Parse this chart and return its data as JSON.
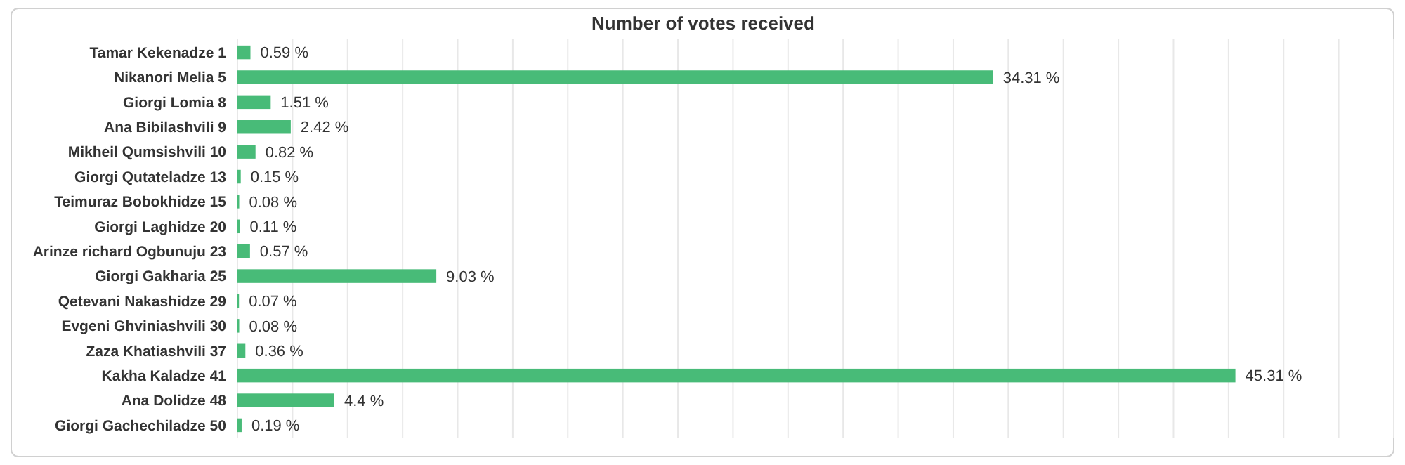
{
  "chart_data": {
    "type": "bar",
    "orientation": "horizontal",
    "title": "Number of votes received",
    "categories": [
      "Tamar Kekenadze 1",
      "Nikanori Melia 5",
      "Giorgi Lomia 8",
      "Ana Bibilashvili 9",
      "Mikheil Qumsishvili 10",
      "Giorgi Qutateladze 13",
      "Teimuraz Bobokhidze 15",
      "Giorgi Laghidze 20",
      "Arinze richard Ogbunuju 23",
      "Giorgi Gakharia 25",
      "Qetevani Nakashidze 29",
      "Evgeni Ghviniashvili 30",
      "Zaza Khatiashvili 37",
      "Kakha Kaladze 41",
      "Ana Dolidze 48",
      "Giorgi Gachechiladze 50"
    ],
    "values": [
      0.59,
      34.31,
      1.51,
      2.42,
      0.82,
      0.15,
      0.08,
      0.11,
      0.57,
      9.03,
      0.07,
      0.08,
      0.36,
      45.31,
      4.4,
      0.19
    ],
    "value_labels": [
      "0.59 %",
      "34.31 %",
      "1.51 %",
      "2.42 %",
      "0.82 %",
      "0.15 %",
      "0.08 %",
      "0.11 %",
      "0.57 %",
      "9.03 %",
      "0.07 %",
      "0.08 %",
      "0.36 %",
      "45.31 %",
      "4.4 %",
      "0.19 %"
    ],
    "color": "#48bb78",
    "xlim": [
      0,
      52.5
    ],
    "xticks": [
      {
        "value": 0,
        "label": null
      },
      {
        "value": 2.5,
        "label": null
      },
      {
        "value": 5,
        "label": null
      },
      {
        "value": 7.5,
        "label": null
      },
      {
        "value": 10,
        "label": null
      },
      {
        "value": 12.5,
        "label": null
      },
      {
        "value": 15,
        "label": null
      },
      {
        "value": 17.5,
        "label": null
      },
      {
        "value": 20,
        "label": null
      },
      {
        "value": 22.5,
        "label": null
      },
      {
        "value": 25,
        "label": null
      },
      {
        "value": 27.5,
        "label": null
      },
      {
        "value": 30,
        "label": null
      },
      {
        "value": 32.5,
        "label": null
      },
      {
        "value": 35,
        "label": null
      },
      {
        "value": 37.5,
        "label": null
      },
      {
        "value": 40,
        "label": null
      },
      {
        "value": 42.5,
        "label": null
      },
      {
        "value": 45,
        "label": null
      },
      {
        "value": 47.5,
        "label": null
      },
      {
        "value": 50,
        "label": null
      },
      {
        "value": 52.5,
        "label": null
      }
    ],
    "grid": "x",
    "tick_labels": "y"
  }
}
